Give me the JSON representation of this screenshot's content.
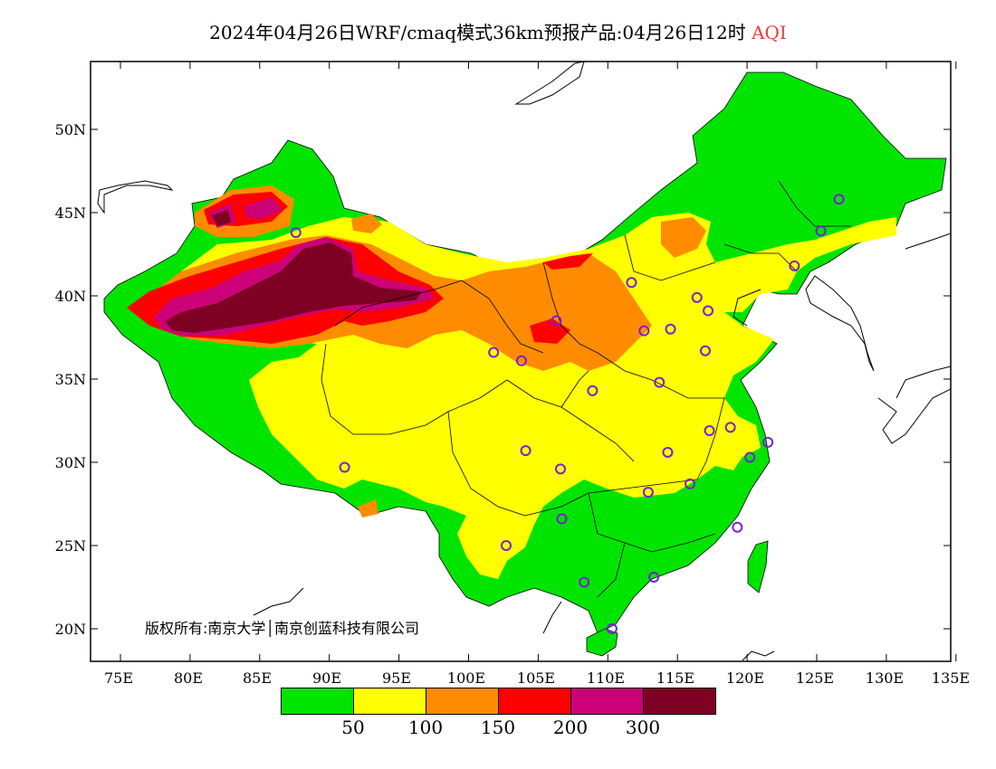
{
  "title": {
    "main": "2024年04月26日WRF/cmaq模式36km预报产品:04月26日12时",
    "variable": "AQI"
  },
  "copyright": "版权所有:南京大学│南京创蓝科技有限公司",
  "axes": {
    "x_ticks": [
      "75E",
      "80E",
      "85E",
      "90E",
      "95E",
      "100E",
      "105E",
      "110E",
      "115E",
      "120E",
      "125E",
      "130E",
      "135E"
    ],
    "y_ticks": [
      "50N",
      "45N",
      "40N",
      "35N",
      "30N",
      "25N",
      "20N"
    ]
  },
  "legend": {
    "colors": [
      "#00e400",
      "#ffff00",
      "#ff8c00",
      "#ff0000",
      "#cc0077",
      "#7e0023"
    ],
    "labels": [
      "50",
      "100",
      "150",
      "200",
      "300"
    ]
  },
  "stations": [
    {
      "lon": 126.6,
      "lat": 45.8
    },
    {
      "lon": 125.3,
      "lat": 43.9
    },
    {
      "lon": 123.4,
      "lat": 41.8
    },
    {
      "lon": 116.4,
      "lat": 39.9
    },
    {
      "lon": 117.2,
      "lat": 39.1
    },
    {
      "lon": 114.5,
      "lat": 38.0
    },
    {
      "lon": 112.6,
      "lat": 37.9
    },
    {
      "lon": 111.7,
      "lat": 40.8
    },
    {
      "lon": 106.3,
      "lat": 38.5
    },
    {
      "lon": 103.8,
      "lat": 36.1
    },
    {
      "lon": 101.8,
      "lat": 36.6
    },
    {
      "lon": 87.6,
      "lat": 43.8
    },
    {
      "lon": 117.0,
      "lat": 36.7
    },
    {
      "lon": 113.7,
      "lat": 34.8
    },
    {
      "lon": 108.9,
      "lat": 34.3
    },
    {
      "lon": 117.3,
      "lat": 31.9
    },
    {
      "lon": 118.8,
      "lat": 32.1
    },
    {
      "lon": 121.5,
      "lat": 31.2
    },
    {
      "lon": 120.2,
      "lat": 30.3
    },
    {
      "lon": 114.3,
      "lat": 30.6
    },
    {
      "lon": 112.9,
      "lat": 28.2
    },
    {
      "lon": 115.9,
      "lat": 28.7
    },
    {
      "lon": 106.6,
      "lat": 29.6
    },
    {
      "lon": 104.1,
      "lat": 30.7
    },
    {
      "lon": 91.1,
      "lat": 29.7
    },
    {
      "lon": 106.7,
      "lat": 26.6
    },
    {
      "lon": 102.7,
      "lat": 25.0
    },
    {
      "lon": 119.3,
      "lat": 26.1
    },
    {
      "lon": 113.3,
      "lat": 23.1
    },
    {
      "lon": 108.3,
      "lat": 22.8
    },
    {
      "lon": 110.3,
      "lat": 20.0
    }
  ]
}
